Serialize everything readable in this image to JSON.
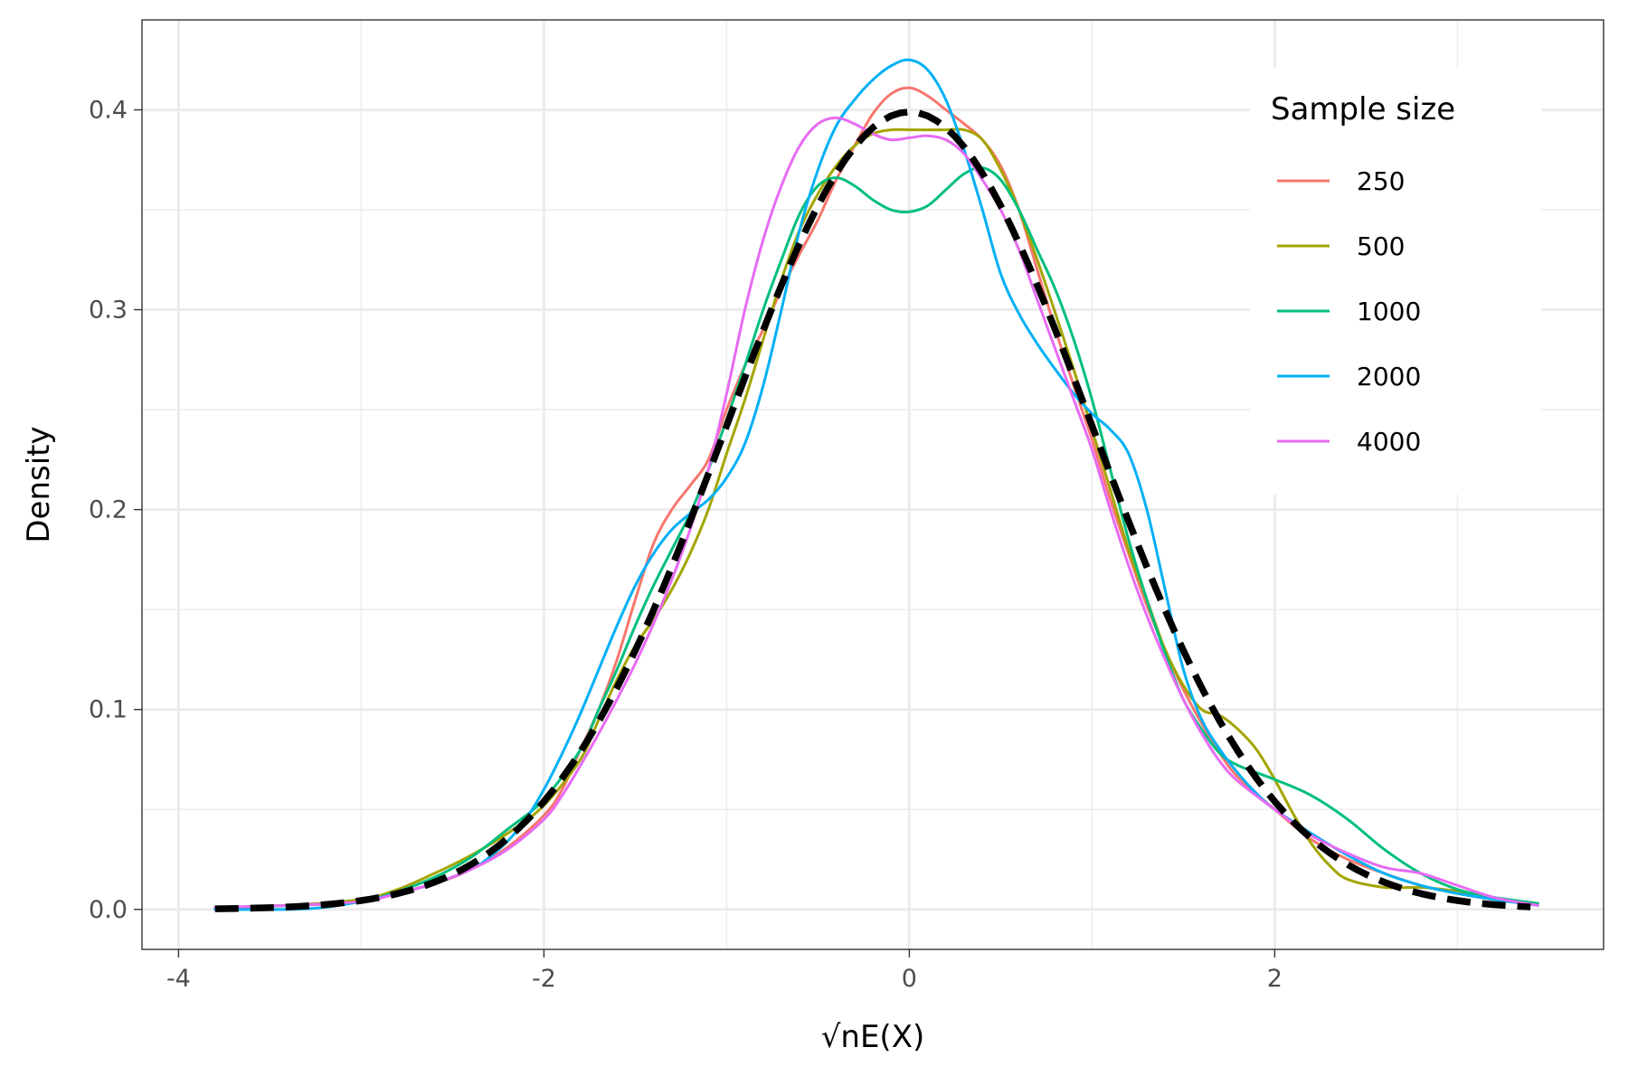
{
  "chart_data": {
    "type": "line",
    "xlabel": "√nE(X)",
    "ylabel": "Density",
    "xlim": [
      -4.2,
      3.8
    ],
    "ylim": [
      -0.02,
      0.445
    ],
    "x_ticks": [
      -4,
      -2,
      0,
      2
    ],
    "x_tick_labels": [
      "-4",
      "-2",
      "0",
      "2"
    ],
    "x_minor_ticks": [
      -3,
      -1,
      1,
      3
    ],
    "y_ticks": [
      0.0,
      0.1,
      0.2,
      0.3,
      0.4
    ],
    "y_tick_labels": [
      "0.0",
      "0.1",
      "0.2",
      "0.3",
      "0.4"
    ],
    "y_minor_ticks": [
      0.05,
      0.15,
      0.25,
      0.35
    ],
    "grid": true,
    "legend": {
      "title": "Sample size",
      "position": "top-right"
    },
    "series": [
      {
        "name": "250",
        "color": "#F8766D",
        "points": [
          [
            -3.8,
            0.001
          ],
          [
            -3.4,
            0.002
          ],
          [
            -3.0,
            0.004
          ],
          [
            -2.6,
            0.013
          ],
          [
            -2.4,
            0.02
          ],
          [
            -2.2,
            0.031
          ],
          [
            -2.0,
            0.047
          ],
          [
            -1.9,
            0.06
          ],
          [
            -1.8,
            0.08
          ],
          [
            -1.7,
            0.1
          ],
          [
            -1.6,
            0.125
          ],
          [
            -1.5,
            0.155
          ],
          [
            -1.4,
            0.183
          ],
          [
            -1.3,
            0.2
          ],
          [
            -1.2,
            0.212
          ],
          [
            -1.1,
            0.225
          ],
          [
            -1.0,
            0.25
          ],
          [
            -0.9,
            0.272
          ],
          [
            -0.8,
            0.29
          ],
          [
            -0.7,
            0.31
          ],
          [
            -0.6,
            0.328
          ],
          [
            -0.5,
            0.345
          ],
          [
            -0.4,
            0.365
          ],
          [
            -0.3,
            0.382
          ],
          [
            -0.2,
            0.398
          ],
          [
            -0.1,
            0.408
          ],
          [
            0.0,
            0.411
          ],
          [
            0.1,
            0.407
          ],
          [
            0.2,
            0.4
          ],
          [
            0.3,
            0.393
          ],
          [
            0.4,
            0.385
          ],
          [
            0.5,
            0.372
          ],
          [
            0.6,
            0.35
          ],
          [
            0.7,
            0.32
          ],
          [
            0.8,
            0.29
          ],
          [
            0.9,
            0.262
          ],
          [
            1.0,
            0.235
          ],
          [
            1.1,
            0.205
          ],
          [
            1.2,
            0.178
          ],
          [
            1.3,
            0.152
          ],
          [
            1.4,
            0.13
          ],
          [
            1.5,
            0.11
          ],
          [
            1.6,
            0.093
          ],
          [
            1.7,
            0.078
          ],
          [
            1.8,
            0.066
          ],
          [
            2.0,
            0.05
          ],
          [
            2.2,
            0.035
          ],
          [
            2.4,
            0.025
          ],
          [
            2.6,
            0.018
          ],
          [
            2.8,
            0.012
          ],
          [
            3.0,
            0.008
          ],
          [
            3.2,
            0.005
          ],
          [
            3.4,
            0.003
          ]
        ]
      },
      {
        "name": "500",
        "color": "#A3A500",
        "points": [
          [
            -3.8,
            0.001
          ],
          [
            -3.4,
            0.002
          ],
          [
            -3.0,
            0.005
          ],
          [
            -2.8,
            0.01
          ],
          [
            -2.6,
            0.018
          ],
          [
            -2.4,
            0.027
          ],
          [
            -2.2,
            0.038
          ],
          [
            -2.0,
            0.052
          ],
          [
            -1.8,
            0.075
          ],
          [
            -1.7,
            0.095
          ],
          [
            -1.6,
            0.115
          ],
          [
            -1.5,
            0.132
          ],
          [
            -1.4,
            0.145
          ],
          [
            -1.3,
            0.16
          ],
          [
            -1.2,
            0.178
          ],
          [
            -1.1,
            0.2
          ],
          [
            -1.0,
            0.228
          ],
          [
            -0.9,
            0.255
          ],
          [
            -0.8,
            0.285
          ],
          [
            -0.7,
            0.315
          ],
          [
            -0.6,
            0.34
          ],
          [
            -0.5,
            0.358
          ],
          [
            -0.4,
            0.372
          ],
          [
            -0.3,
            0.382
          ],
          [
            -0.2,
            0.388
          ],
          [
            -0.1,
            0.39
          ],
          [
            0.0,
            0.39
          ],
          [
            0.1,
            0.39
          ],
          [
            0.2,
            0.39
          ],
          [
            0.3,
            0.39
          ],
          [
            0.4,
            0.385
          ],
          [
            0.5,
            0.37
          ],
          [
            0.6,
            0.35
          ],
          [
            0.7,
            0.325
          ],
          [
            0.8,
            0.298
          ],
          [
            0.9,
            0.27
          ],
          [
            1.0,
            0.24
          ],
          [
            1.1,
            0.21
          ],
          [
            1.2,
            0.18
          ],
          [
            1.3,
            0.155
          ],
          [
            1.4,
            0.13
          ],
          [
            1.5,
            0.112
          ],
          [
            1.6,
            0.1
          ],
          [
            1.7,
            0.097
          ],
          [
            1.8,
            0.09
          ],
          [
            1.9,
            0.08
          ],
          [
            2.0,
            0.065
          ],
          [
            2.1,
            0.048
          ],
          [
            2.2,
            0.033
          ],
          [
            2.3,
            0.022
          ],
          [
            2.4,
            0.015
          ],
          [
            2.6,
            0.011
          ],
          [
            2.8,
            0.011
          ],
          [
            3.0,
            0.009
          ],
          [
            3.2,
            0.005
          ],
          [
            3.44,
            0.003
          ]
        ]
      },
      {
        "name": "1000",
        "color": "#00BF7D",
        "points": [
          [
            -3.8,
            0.001
          ],
          [
            -3.4,
            0.002
          ],
          [
            -3.0,
            0.004
          ],
          [
            -2.8,
            0.009
          ],
          [
            -2.6,
            0.016
          ],
          [
            -2.4,
            0.026
          ],
          [
            -2.2,
            0.04
          ],
          [
            -2.0,
            0.055
          ],
          [
            -1.8,
            0.08
          ],
          [
            -1.7,
            0.1
          ],
          [
            -1.6,
            0.12
          ],
          [
            -1.5,
            0.142
          ],
          [
            -1.4,
            0.162
          ],
          [
            -1.3,
            0.18
          ],
          [
            -1.2,
            0.198
          ],
          [
            -1.1,
            0.22
          ],
          [
            -1.0,
            0.245
          ],
          [
            -0.9,
            0.272
          ],
          [
            -0.8,
            0.3
          ],
          [
            -0.7,
            0.325
          ],
          [
            -0.6,
            0.348
          ],
          [
            -0.5,
            0.362
          ],
          [
            -0.4,
            0.366
          ],
          [
            -0.3,
            0.362
          ],
          [
            -0.2,
            0.355
          ],
          [
            -0.1,
            0.35
          ],
          [
            0.0,
            0.349
          ],
          [
            0.1,
            0.352
          ],
          [
            0.2,
            0.36
          ],
          [
            0.3,
            0.368
          ],
          [
            0.4,
            0.371
          ],
          [
            0.5,
            0.365
          ],
          [
            0.6,
            0.35
          ],
          [
            0.7,
            0.33
          ],
          [
            0.8,
            0.31
          ],
          [
            0.9,
            0.285
          ],
          [
            1.0,
            0.255
          ],
          [
            1.1,
            0.22
          ],
          [
            1.2,
            0.185
          ],
          [
            1.3,
            0.155
          ],
          [
            1.4,
            0.128
          ],
          [
            1.5,
            0.105
          ],
          [
            1.6,
            0.09
          ],
          [
            1.7,
            0.078
          ],
          [
            1.8,
            0.072
          ],
          [
            2.0,
            0.065
          ],
          [
            2.2,
            0.057
          ],
          [
            2.4,
            0.045
          ],
          [
            2.6,
            0.03
          ],
          [
            2.8,
            0.018
          ],
          [
            3.0,
            0.01
          ],
          [
            3.2,
            0.006
          ],
          [
            3.44,
            0.003
          ]
        ]
      },
      {
        "name": "2000",
        "color": "#00B0F6",
        "points": [
          [
            -3.8,
            0.0
          ],
          [
            -3.4,
            0.0
          ],
          [
            -3.2,
            0.001
          ],
          [
            -3.0,
            0.004
          ],
          [
            -2.8,
            0.008
          ],
          [
            -2.6,
            0.013
          ],
          [
            -2.4,
            0.02
          ],
          [
            -2.3,
            0.026
          ],
          [
            -2.2,
            0.034
          ],
          [
            -2.1,
            0.045
          ],
          [
            -2.0,
            0.06
          ],
          [
            -1.9,
            0.078
          ],
          [
            -1.8,
            0.098
          ],
          [
            -1.7,
            0.12
          ],
          [
            -1.6,
            0.142
          ],
          [
            -1.5,
            0.162
          ],
          [
            -1.4,
            0.178
          ],
          [
            -1.3,
            0.19
          ],
          [
            -1.2,
            0.198
          ],
          [
            -1.1,
            0.205
          ],
          [
            -1.0,
            0.216
          ],
          [
            -0.9,
            0.233
          ],
          [
            -0.8,
            0.262
          ],
          [
            -0.7,
            0.3
          ],
          [
            -0.6,
            0.34
          ],
          [
            -0.5,
            0.37
          ],
          [
            -0.4,
            0.392
          ],
          [
            -0.3,
            0.405
          ],
          [
            -0.2,
            0.415
          ],
          [
            -0.1,
            0.422
          ],
          [
            0.0,
            0.425
          ],
          [
            0.1,
            0.42
          ],
          [
            0.2,
            0.405
          ],
          [
            0.3,
            0.38
          ],
          [
            0.4,
            0.35
          ],
          [
            0.5,
            0.318
          ],
          [
            0.6,
            0.298
          ],
          [
            0.7,
            0.283
          ],
          [
            0.8,
            0.27
          ],
          [
            0.9,
            0.258
          ],
          [
            1.0,
            0.248
          ],
          [
            1.1,
            0.24
          ],
          [
            1.2,
            0.228
          ],
          [
            1.3,
            0.2
          ],
          [
            1.4,
            0.16
          ],
          [
            1.5,
            0.12
          ],
          [
            1.6,
            0.095
          ],
          [
            1.7,
            0.08
          ],
          [
            1.8,
            0.068
          ],
          [
            1.9,
            0.058
          ],
          [
            2.0,
            0.05
          ],
          [
            2.2,
            0.038
          ],
          [
            2.4,
            0.027
          ],
          [
            2.6,
            0.018
          ],
          [
            2.8,
            0.012
          ],
          [
            3.0,
            0.008
          ],
          [
            3.2,
            0.005
          ],
          [
            3.44,
            0.002
          ]
        ]
      },
      {
        "name": "4000",
        "color": "#E76BF3",
        "points": [
          [
            -3.8,
            0.001
          ],
          [
            -3.4,
            0.002
          ],
          [
            -3.0,
            0.004
          ],
          [
            -2.8,
            0.008
          ],
          [
            -2.6,
            0.013
          ],
          [
            -2.4,
            0.02
          ],
          [
            -2.2,
            0.03
          ],
          [
            -2.0,
            0.045
          ],
          [
            -1.9,
            0.057
          ],
          [
            -1.8,
            0.072
          ],
          [
            -1.7,
            0.088
          ],
          [
            -1.6,
            0.105
          ],
          [
            -1.5,
            0.123
          ],
          [
            -1.4,
            0.143
          ],
          [
            -1.3,
            0.165
          ],
          [
            -1.2,
            0.19
          ],
          [
            -1.1,
            0.22
          ],
          [
            -1.0,
            0.258
          ],
          [
            -0.9,
            0.3
          ],
          [
            -0.8,
            0.335
          ],
          [
            -0.7,
            0.362
          ],
          [
            -0.6,
            0.382
          ],
          [
            -0.5,
            0.393
          ],
          [
            -0.4,
            0.396
          ],
          [
            -0.3,
            0.393
          ],
          [
            -0.2,
            0.388
          ],
          [
            -0.1,
            0.385
          ],
          [
            0.0,
            0.386
          ],
          [
            0.1,
            0.387
          ],
          [
            0.2,
            0.385
          ],
          [
            0.3,
            0.378
          ],
          [
            0.4,
            0.365
          ],
          [
            0.5,
            0.35
          ],
          [
            0.6,
            0.33
          ],
          [
            0.7,
            0.305
          ],
          [
            0.8,
            0.28
          ],
          [
            0.9,
            0.255
          ],
          [
            1.0,
            0.23
          ],
          [
            1.1,
            0.2
          ],
          [
            1.2,
            0.172
          ],
          [
            1.3,
            0.147
          ],
          [
            1.4,
            0.125
          ],
          [
            1.5,
            0.105
          ],
          [
            1.6,
            0.088
          ],
          [
            1.7,
            0.074
          ],
          [
            1.8,
            0.064
          ],
          [
            2.0,
            0.05
          ],
          [
            2.2,
            0.037
          ],
          [
            2.4,
            0.028
          ],
          [
            2.6,
            0.021
          ],
          [
            2.8,
            0.018
          ],
          [
            3.0,
            0.012
          ],
          [
            3.2,
            0.006
          ],
          [
            3.44,
            0.002
          ]
        ]
      }
    ],
    "reference_curve": {
      "style": "dashed",
      "color": "#000000",
      "x_range": [
        -3.8,
        3.4
      ],
      "distribution": "standard normal"
    }
  }
}
